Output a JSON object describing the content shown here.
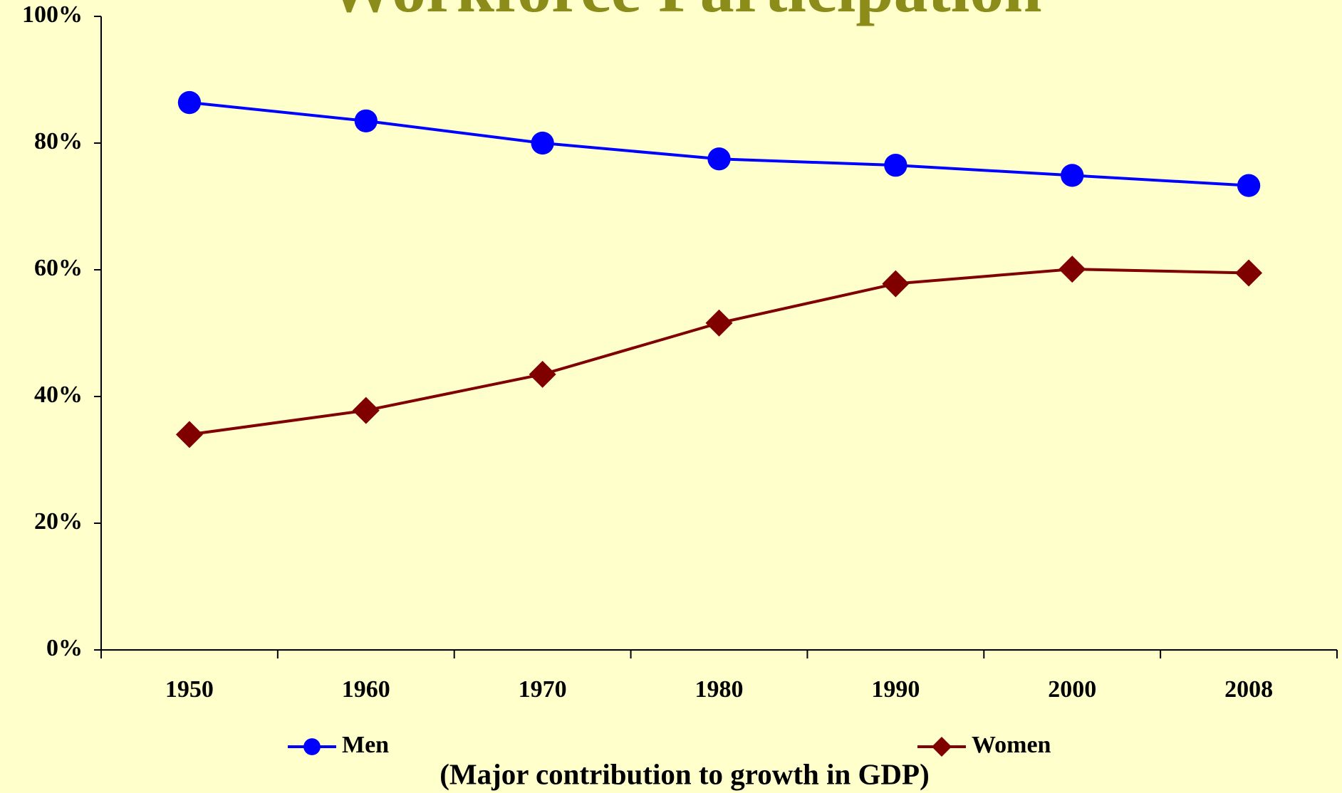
{
  "chart_data": {
    "type": "line",
    "title": "Workforce Participation",
    "subtitle": "(Major contribution to growth in GDP)",
    "categories": [
      "1950",
      "1960",
      "1970",
      "1980",
      "1990",
      "2000",
      "2008"
    ],
    "series": [
      {
        "name": "Men",
        "color": "#0000ff",
        "marker": "circle",
        "values": [
          86.4,
          83.5,
          80.0,
          77.5,
          76.5,
          74.9,
          73.3
        ]
      },
      {
        "name": "Women",
        "color": "#800000",
        "marker": "diamond",
        "values": [
          34.0,
          37.8,
          43.5,
          51.6,
          57.8,
          60.1,
          59.5
        ]
      }
    ],
    "ylim": [
      0,
      100
    ],
    "yticks": [
      {
        "value": 0,
        "label": "0%"
      },
      {
        "value": 20,
        "label": "20%"
      },
      {
        "value": 40,
        "label": "40%"
      },
      {
        "value": 60,
        "label": "60%"
      },
      {
        "value": 80,
        "label": "80%"
      },
      {
        "value": 100,
        "label": "100%"
      }
    ],
    "grid": false,
    "legend": "bottom"
  }
}
